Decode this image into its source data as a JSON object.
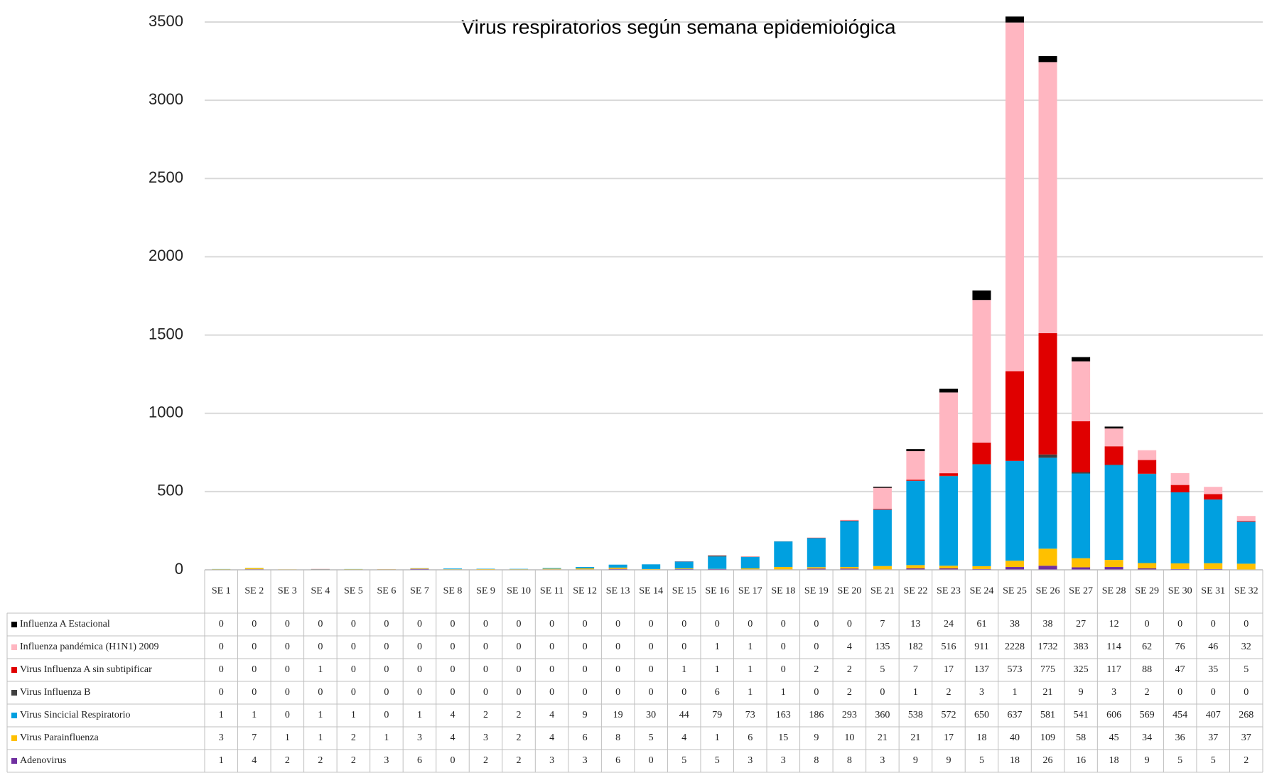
{
  "chart_data": {
    "type": "stacked_bar",
    "title": "Virus respiratorios según semana epidemiológica",
    "categories": [
      "SE 1",
      "SE 2",
      "SE 3",
      "SE 4",
      "SE 5",
      "SE 6",
      "SE 7",
      "SE 8",
      "SE 9",
      "SE 10",
      "SE 11",
      "SE 12",
      "SE 13",
      "SE 14",
      "SE 15",
      "SE 16",
      "SE 17",
      "SE 18",
      "SE 19",
      "SE 20",
      "SE 21",
      "SE 22",
      "SE 23",
      "SE 24",
      "SE 25",
      "SE 26",
      "SE 27",
      "SE 28",
      "SE 29",
      "SE 30",
      "SE 31",
      "SE 32"
    ],
    "series": [
      {
        "name": "Influenza A Estacional",
        "color": "#000000",
        "values": [
          0,
          0,
          0,
          0,
          0,
          0,
          0,
          0,
          0,
          0,
          0,
          0,
          0,
          0,
          0,
          0,
          0,
          0,
          0,
          0,
          7,
          13,
          24,
          61,
          38,
          38,
          27,
          12,
          0,
          0,
          0,
          0
        ]
      },
      {
        "name": "Influenza pandémica (H1N1) 2009",
        "color": "#ffb6c1",
        "values": [
          0,
          0,
          0,
          0,
          0,
          0,
          0,
          0,
          0,
          0,
          0,
          0,
          0,
          0,
          0,
          1,
          1,
          0,
          0,
          4,
          135,
          182,
          516,
          911,
          2228,
          1732,
          383,
          114,
          62,
          76,
          46,
          32
        ]
      },
      {
        "name": "Virus Influenza A sin subtipificar",
        "color": "#e00000",
        "values": [
          0,
          0,
          0,
          1,
          0,
          0,
          0,
          0,
          0,
          0,
          0,
          0,
          0,
          0,
          1,
          1,
          1,
          0,
          2,
          2,
          5,
          7,
          17,
          137,
          573,
          775,
          325,
          117,
          88,
          47,
          35,
          5
        ]
      },
      {
        "name": "Virus Influenza B",
        "color": "#404040",
        "values": [
          0,
          0,
          0,
          0,
          0,
          0,
          0,
          0,
          0,
          0,
          0,
          0,
          0,
          0,
          0,
          6,
          1,
          1,
          0,
          2,
          0,
          1,
          2,
          3,
          1,
          21,
          9,
          3,
          2,
          0,
          0,
          0
        ]
      },
      {
        "name": "Virus Sincicial Respiratorio",
        "color": "#00a0e0",
        "values": [
          1,
          1,
          0,
          1,
          1,
          0,
          1,
          4,
          2,
          2,
          4,
          9,
          19,
          30,
          44,
          79,
          73,
          163,
          186,
          293,
          360,
          538,
          572,
          650,
          637,
          581,
          541,
          606,
          569,
          454,
          407,
          268
        ]
      },
      {
        "name": "Virus Parainfluenza",
        "color": "#ffc000",
        "values": [
          3,
          7,
          1,
          1,
          2,
          1,
          3,
          4,
          3,
          2,
          4,
          6,
          8,
          5,
          4,
          1,
          6,
          15,
          9,
          10,
          21,
          21,
          17,
          18,
          40,
          109,
          58,
          45,
          34,
          36,
          37,
          37
        ]
      },
      {
        "name": "Adenovirus",
        "color": "#7030a0",
        "values": [
          1,
          4,
          2,
          2,
          2,
          3,
          6,
          0,
          2,
          2,
          3,
          3,
          6,
          0,
          5,
          5,
          3,
          3,
          8,
          8,
          3,
          9,
          9,
          5,
          18,
          26,
          16,
          18,
          9,
          5,
          5,
          2
        ]
      }
    ],
    "ylim": [
      0,
      3500
    ],
    "yticks": [
      0,
      500,
      1000,
      1500,
      2000,
      2500,
      3000,
      3500
    ],
    "grid": true
  }
}
